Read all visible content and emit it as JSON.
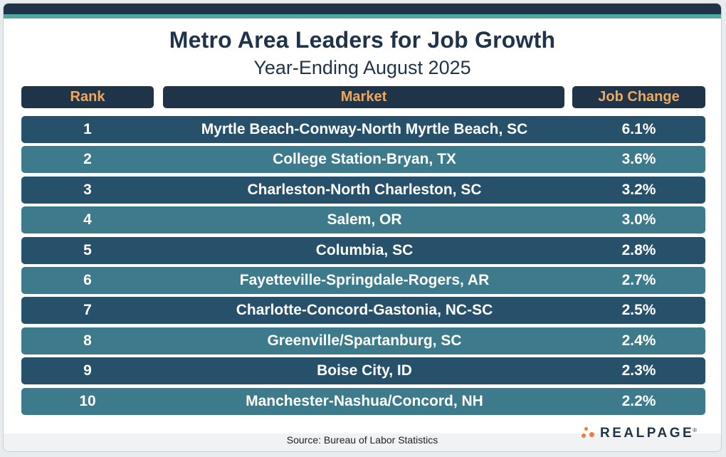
{
  "chart_data": {
    "type": "table",
    "title": "Metro Area Leaders for Job Growth",
    "subtitle": "Year-Ending August 2025",
    "columns": [
      "Rank",
      "Market",
      "Job Change"
    ],
    "rows": [
      {
        "rank": "1",
        "market": "Myrtle Beach-Conway-North Myrtle Beach, SC",
        "change": "6.1%"
      },
      {
        "rank": "2",
        "market": "College Station-Bryan, TX",
        "change": "3.6%"
      },
      {
        "rank": "3",
        "market": "Charleston-North Charleston, SC",
        "change": "3.2%"
      },
      {
        "rank": "4",
        "market": "Salem, OR",
        "change": "3.0%"
      },
      {
        "rank": "5",
        "market": "Columbia, SC",
        "change": "2.8%"
      },
      {
        "rank": "6",
        "market": "Fayetteville-Springdale-Rogers, AR",
        "change": "2.7%"
      },
      {
        "rank": "7",
        "market": "Charlotte-Concord-Gastonia, NC-SC",
        "change": "2.5%"
      },
      {
        "rank": "8",
        "market": "Greenville/Spartanburg, SC",
        "change": "2.4%"
      },
      {
        "rank": "9",
        "market": "Boise City, ID",
        "change": "2.3%"
      },
      {
        "rank": "10",
        "market": "Manchester-Nashua/Concord, NH",
        "change": "2.2%"
      }
    ],
    "source": "Source: Bureau of Labor Statistics"
  },
  "brand": {
    "logo_text": "REALPAGE",
    "trademark": "®"
  },
  "colors": {
    "navy": "#1f3349",
    "teal_stripe": "#4fa8a2",
    "row_dark": "#27506b",
    "row_light": "#3c7a8c",
    "header_text": "#f0a85c",
    "logo_dots": "#f07a3a"
  }
}
